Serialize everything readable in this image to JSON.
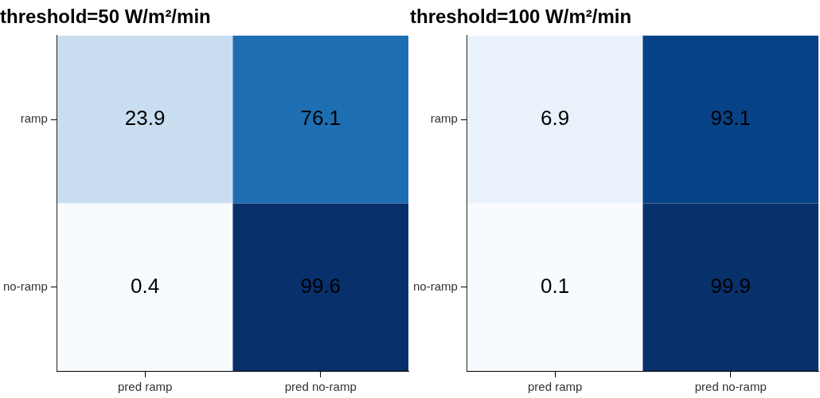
{
  "chart_data": [
    {
      "type": "heatmap",
      "title": "threshold=50 W/m²/min",
      "categories": [
        "pred ramp",
        "pred no-ramp"
      ],
      "y_categories": [
        "ramp",
        "no-ramp"
      ],
      "cells": [
        [
          23.9,
          76.1
        ],
        [
          0.4,
          99.6
        ]
      ],
      "data_labels": true,
      "grid": false
    },
    {
      "type": "heatmap",
      "title": "threshold=100 W/m²/min",
      "categories": [
        "pred ramp",
        "pred no-ramp"
      ],
      "y_categories": [
        "ramp",
        "no-ramp"
      ],
      "cells": [
        [
          6.9,
          93.1
        ],
        [
          0.1,
          99.9
        ]
      ],
      "data_labels": true,
      "grid": false
    }
  ]
}
